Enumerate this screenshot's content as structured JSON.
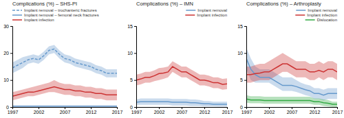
{
  "chart_data": [
    {
      "type": "line",
      "title": "Complications (%) – SHS-PI",
      "x": [
        1997,
        1998,
        1999,
        2000,
        2001,
        2002,
        2003,
        2004,
        2005,
        2006,
        2007,
        2008,
        2009,
        2010,
        2011,
        2012,
        2013,
        2014,
        2015,
        2016,
        2017
      ],
      "xlim": [
        1997,
        2017
      ],
      "xticks": [
        1997,
        2002,
        2007,
        2012,
        2017
      ],
      "ylim": [
        0,
        30
      ],
      "yticks": [
        0,
        10,
        20,
        30
      ],
      "legend": "upper left",
      "series": [
        {
          "name": "Implant removal – trochanteric fractures",
          "color": "#6699cc",
          "line_style": "dashed",
          "values": [
            14.5,
            15.5,
            16.5,
            17.5,
            18.0,
            17.5,
            19.0,
            21.0,
            21.5,
            19.5,
            18.0,
            17.5,
            16.5,
            16.0,
            15.5,
            15.0,
            14.0,
            13.5,
            12.5,
            12.5,
            12.5
          ],
          "lower": [
            12.5,
            13.5,
            14.5,
            16.0,
            16.5,
            16.0,
            17.5,
            19.5,
            20.0,
            18.0,
            16.5,
            16.0,
            15.0,
            14.5,
            14.0,
            13.5,
            12.5,
            12.0,
            11.0,
            11.0,
            11.0
          ],
          "upper": [
            16.5,
            17.5,
            18.5,
            19.0,
            19.5,
            19.0,
            20.5,
            22.5,
            23.0,
            21.0,
            19.5,
            19.0,
            18.0,
            17.5,
            17.0,
            16.5,
            15.5,
            15.0,
            14.0,
            14.0,
            14.0
          ]
        },
        {
          "name": "Implant removal – femoral neck fractures",
          "color": "#6699cc",
          "line_style": "solid",
          "values": [
            0.3,
            0.3,
            0.3,
            0.3,
            0.3,
            0.3,
            0.3,
            0.3,
            0.3,
            0.3,
            0.3,
            0.3,
            0.3,
            0.3,
            0.3,
            0.3,
            0.3,
            0.3,
            0.3,
            0.3,
            0.3
          ],
          "lower": [
            0.05,
            0.05,
            0.05,
            0.05,
            0.05,
            0.05,
            0.05,
            0.05,
            0.05,
            0.05,
            0.05,
            0.05,
            0.05,
            0.05,
            0.05,
            0.05,
            0.05,
            0.05,
            0.05,
            0.05,
            0.05
          ],
          "upper": [
            0.6,
            0.6,
            0.6,
            0.6,
            0.6,
            0.6,
            0.6,
            0.6,
            0.6,
            0.6,
            0.6,
            0.6,
            0.6,
            0.6,
            0.6,
            0.6,
            0.6,
            0.6,
            0.6,
            0.6,
            0.6
          ]
        },
        {
          "name": "Implant infection",
          "color": "#cc3333",
          "line_style": "solid",
          "values": [
            4.0,
            4.5,
            5.0,
            5.5,
            5.5,
            6.0,
            6.5,
            7.0,
            7.5,
            7.0,
            6.5,
            6.5,
            6.0,
            6.0,
            5.5,
            5.5,
            5.0,
            5.0,
            4.5,
            4.5,
            4.5
          ],
          "lower": [
            2.5,
            3.0,
            3.5,
            4.0,
            4.0,
            4.5,
            5.0,
            5.5,
            5.5,
            5.0,
            4.5,
            4.5,
            4.0,
            4.0,
            3.5,
            3.5,
            3.0,
            3.0,
            2.5,
            2.5,
            2.5
          ],
          "upper": [
            5.5,
            6.0,
            6.5,
            7.0,
            7.5,
            8.0,
            8.5,
            9.0,
            10.0,
            9.0,
            8.5,
            8.5,
            8.0,
            8.0,
            7.5,
            7.5,
            7.0,
            7.0,
            6.5,
            6.5,
            6.5
          ]
        }
      ]
    },
    {
      "type": "line",
      "title": "Complications (%) – IMN",
      "x": [
        1997,
        1998,
        1999,
        2000,
        2001,
        2002,
        2003,
        2004,
        2005,
        2006,
        2007,
        2008,
        2009,
        2010,
        2011,
        2012,
        2013,
        2014,
        2015,
        2016,
        2017
      ],
      "xlim": [
        1997,
        2017
      ],
      "xticks": [
        1997,
        2002,
        2007,
        2012,
        2017
      ],
      "ylim": [
        0,
        15
      ],
      "yticks": [
        0,
        5,
        10,
        15
      ],
      "legend": "upper right",
      "series": [
        {
          "name": "Implant removal",
          "color": "#6699cc",
          "line_style": "solid",
          "values": [
            0.9,
            1.0,
            1.0,
            1.0,
            1.0,
            1.0,
            1.0,
            1.0,
            0.9,
            0.9,
            0.9,
            0.9,
            0.8,
            0.8,
            0.7,
            0.6,
            0.6,
            0.5,
            0.5,
            0.5,
            0.5
          ],
          "lower": [
            0.4,
            0.4,
            0.4,
            0.4,
            0.4,
            0.4,
            0.4,
            0.4,
            0.3,
            0.3,
            0.3,
            0.3,
            0.2,
            0.2,
            0.2,
            0.1,
            0.1,
            0.1,
            0.05,
            0.05,
            0.05
          ],
          "upper": [
            1.4,
            1.6,
            1.6,
            1.6,
            1.6,
            1.6,
            1.6,
            1.6,
            1.5,
            1.5,
            1.5,
            1.5,
            1.4,
            1.4,
            1.3,
            1.1,
            1.1,
            1.0,
            1.0,
            1.0,
            1.0
          ]
        },
        {
          "name": "Implant infection",
          "color": "#cc3333",
          "line_style": "solid",
          "values": [
            5.0,
            5.2,
            5.5,
            5.5,
            5.8,
            6.2,
            6.3,
            6.5,
            7.5,
            7.0,
            6.5,
            6.5,
            6.0,
            5.5,
            5.0,
            5.0,
            4.8,
            4.5,
            4.5,
            4.2,
            4.3
          ],
          "lower": [
            4.0,
            4.2,
            4.5,
            4.5,
            4.8,
            5.0,
            5.2,
            5.5,
            6.5,
            6.0,
            5.5,
            5.5,
            5.0,
            4.5,
            4.0,
            4.0,
            3.8,
            3.5,
            3.5,
            3.2,
            3.3
          ],
          "upper": [
            6.0,
            6.2,
            6.5,
            6.5,
            6.8,
            7.2,
            7.3,
            7.5,
            8.5,
            8.0,
            7.5,
            7.5,
            7.0,
            6.5,
            6.0,
            6.0,
            5.8,
            5.5,
            5.5,
            5.2,
            5.3
          ]
        }
      ]
    },
    {
      "type": "line",
      "title": "Complications (%) – Arthroplasty",
      "x": [
        1997,
        1998,
        1999,
        2000,
        2001,
        2002,
        2003,
        2004,
        2005,
        2006,
        2007,
        2008,
        2009,
        2010,
        2011,
        2012,
        2013,
        2014,
        2015,
        2016,
        2017
      ],
      "xlim": [
        1997,
        2017
      ],
      "xticks": [
        1997,
        2002,
        2007,
        2012,
        2017
      ],
      "ylim": [
        0,
        15
      ],
      "yticks": [
        0,
        5,
        10,
        15
      ],
      "legend": "upper right",
      "series": [
        {
          "name": "Implant removal",
          "color": "#6699cc",
          "line_style": "solid",
          "values": [
            9.0,
            7.0,
            6.0,
            5.5,
            5.5,
            5.5,
            5.0,
            4.5,
            4.0,
            4.0,
            4.0,
            3.8,
            3.5,
            3.2,
            3.0,
            2.5,
            2.5,
            2.2,
            2.5,
            2.5,
            2.5
          ],
          "lower": [
            7.0,
            5.0,
            4.5,
            4.5,
            4.5,
            4.5,
            4.0,
            3.5,
            3.0,
            3.0,
            3.0,
            2.8,
            2.5,
            2.2,
            2.0,
            1.5,
            1.5,
            1.2,
            1.5,
            1.5,
            1.5
          ],
          "upper": [
            11.0,
            9.0,
            7.5,
            7.0,
            7.0,
            7.0,
            6.5,
            6.0,
            5.5,
            5.5,
            5.5,
            5.0,
            4.5,
            4.2,
            4.0,
            3.5,
            3.5,
            3.2,
            3.5,
            3.5,
            3.5
          ]
        },
        {
          "name": "Implant infection",
          "color": "#cc3333",
          "line_style": "solid",
          "values": [
            6.0,
            6.0,
            6.2,
            6.3,
            6.5,
            6.5,
            7.0,
            7.5,
            8.0,
            8.0,
            7.5,
            7.0,
            7.0,
            7.0,
            6.5,
            6.5,
            6.8,
            6.5,
            7.0,
            7.0,
            6.5
          ],
          "lower": [
            4.5,
            4.5,
            4.8,
            5.0,
            5.0,
            5.0,
            5.5,
            6.0,
            6.5,
            6.5,
            6.0,
            5.5,
            5.5,
            5.5,
            5.0,
            5.0,
            5.5,
            5.0,
            5.5,
            5.5,
            5.0
          ],
          "upper": [
            7.5,
            7.5,
            7.8,
            8.0,
            8.0,
            8.5,
            9.0,
            9.5,
            10.0,
            9.5,
            9.0,
            8.5,
            8.5,
            8.5,
            8.0,
            8.0,
            8.5,
            8.0,
            8.5,
            8.5,
            8.0
          ]
        },
        {
          "name": "Dislocation",
          "color": "#33aa44",
          "line_style": "solid",
          "values": [
            1.5,
            1.3,
            1.3,
            1.3,
            1.2,
            1.2,
            1.2,
            1.2,
            1.2,
            1.2,
            1.2,
            1.2,
            1.2,
            1.2,
            1.2,
            1.0,
            1.0,
            0.8,
            0.7,
            0.5,
            0.5
          ],
          "lower": [
            0.8,
            0.7,
            0.7,
            0.7,
            0.6,
            0.6,
            0.6,
            0.6,
            0.6,
            0.6,
            0.6,
            0.6,
            0.6,
            0.6,
            0.6,
            0.4,
            0.4,
            0.2,
            0.1,
            0.0,
            0.0
          ],
          "upper": [
            2.2,
            2.0,
            2.0,
            2.0,
            1.9,
            1.9,
            1.9,
            1.9,
            1.9,
            1.9,
            1.9,
            1.9,
            1.9,
            1.9,
            1.9,
            1.6,
            1.6,
            1.4,
            1.3,
            1.0,
            1.0
          ]
        }
      ]
    }
  ]
}
